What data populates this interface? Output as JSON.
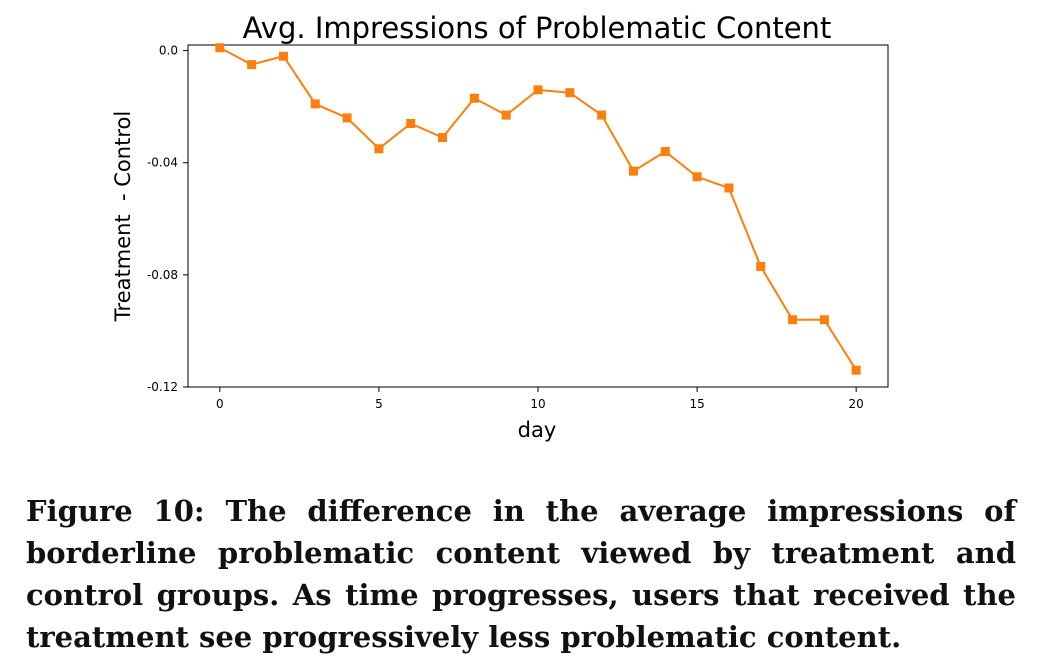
{
  "chart_data": {
    "type": "line",
    "title": "Avg. Impressions of Problematic Content",
    "xlabel": "day",
    "ylabel": "Treatment  - Control",
    "xlim": [
      -1,
      21
    ],
    "ylim": [
      -0.12,
      0.002
    ],
    "xticks": [
      0,
      5,
      10,
      15,
      20
    ],
    "xtick_labels": [
      "0",
      "5",
      "10",
      "15",
      "20"
    ],
    "yticks": [
      0.0,
      -0.04,
      -0.08,
      -0.12
    ],
    "ytick_labels": [
      "0.0",
      "-0.04",
      "-0.08",
      "-0.12"
    ],
    "grid": false,
    "series": [
      {
        "color": "#ff7f0e",
        "marker": "square",
        "x": [
          0,
          1,
          2,
          3,
          4,
          5,
          6,
          7,
          8,
          9,
          10,
          11,
          12,
          13,
          14,
          15,
          16,
          17,
          18,
          19,
          20
        ],
        "values": [
          0.001,
          -0.005,
          -0.002,
          -0.019,
          -0.024,
          -0.035,
          -0.026,
          -0.031,
          -0.017,
          -0.023,
          -0.014,
          -0.015,
          -0.023,
          -0.043,
          -0.036,
          -0.045,
          -0.049,
          -0.077,
          -0.096,
          -0.096,
          -0.114
        ]
      }
    ]
  },
  "caption": "Figure 10: The difference in the average impressions of borderline problematic content viewed by treatment and control groups. As time progresses, users that received the treatment see progressively less problematic content."
}
